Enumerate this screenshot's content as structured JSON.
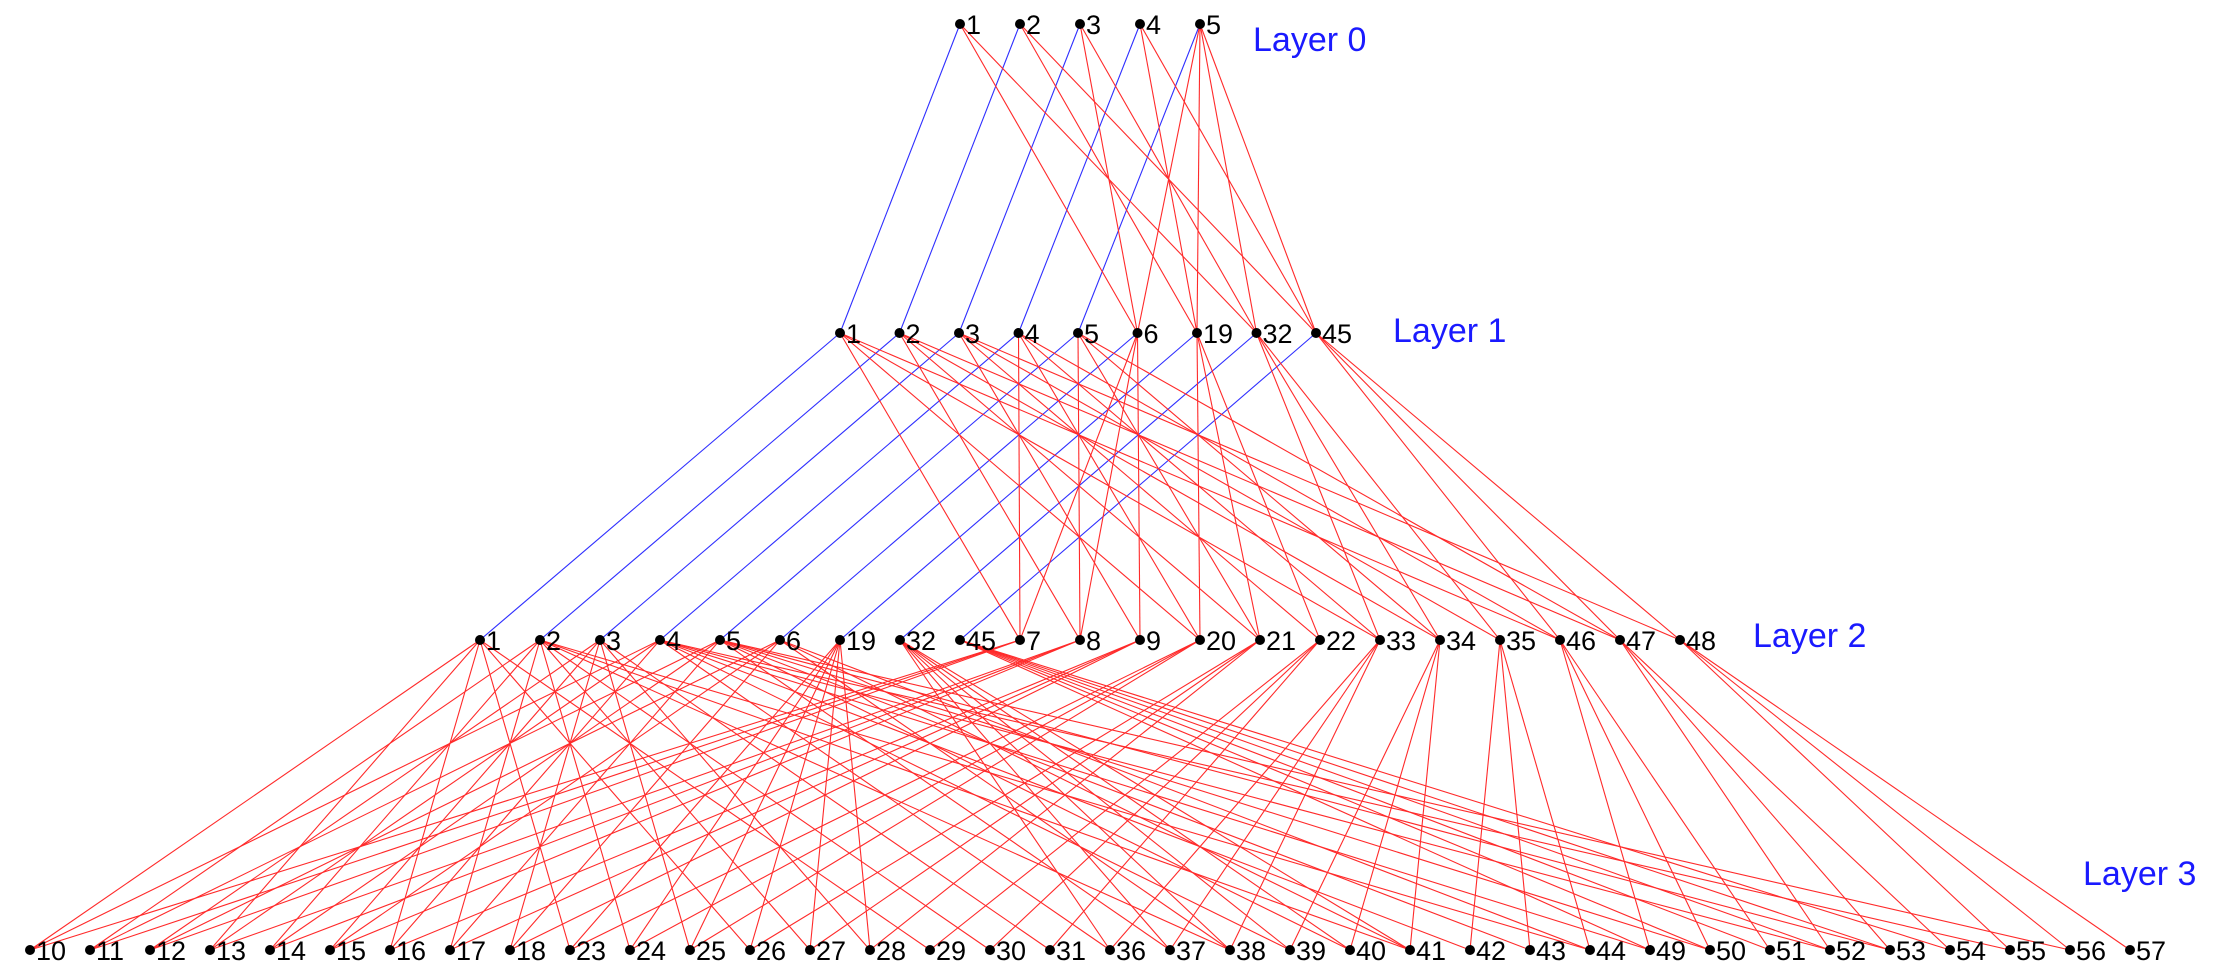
{
  "colors": {
    "node": "#000000",
    "edge_same": "#2f2fff",
    "edge_other": "#ff2a2a",
    "layer_label": "#1a1aff"
  },
  "layers": [
    {
      "label": "Layer 0",
      "nodes": [
        "1",
        "2",
        "3",
        "4",
        "5"
      ]
    },
    {
      "label": "Layer 1",
      "nodes": [
        "1",
        "2",
        "3",
        "4",
        "5",
        "6",
        "19",
        "32",
        "45"
      ]
    },
    {
      "label": "Layer 2",
      "nodes": [
        "1",
        "2",
        "3",
        "4",
        "5",
        "6",
        "19",
        "32",
        "45",
        "7",
        "8",
        "9",
        "20",
        "21",
        "22",
        "33",
        "34",
        "35",
        "46",
        "47",
        "48"
      ]
    },
    {
      "label": "Layer 3",
      "nodes": [
        "10",
        "11",
        "12",
        "13",
        "14",
        "15",
        "16",
        "17",
        "18",
        "23",
        "24",
        "25",
        "26",
        "27",
        "28",
        "29",
        "30",
        "31",
        "36",
        "37",
        "38",
        "39",
        "40",
        "41",
        "42",
        "43",
        "44",
        "49",
        "50",
        "51",
        "52",
        "53",
        "54",
        "55",
        "56",
        "57"
      ]
    }
  ]
}
